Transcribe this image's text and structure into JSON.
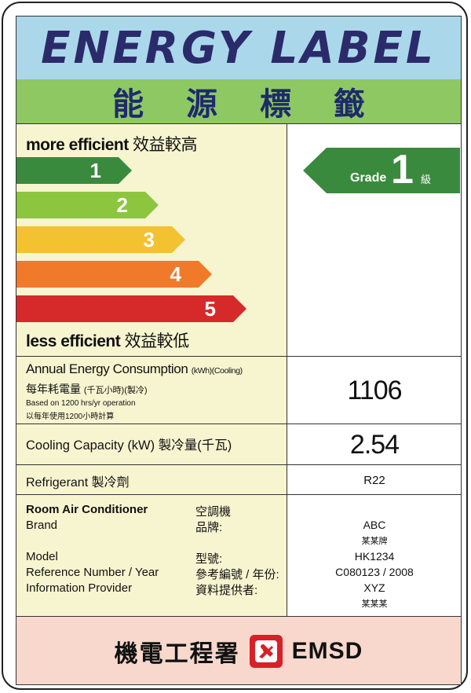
{
  "header": {
    "title_en": "ENERGY LABEL",
    "title_zh": "能 源 標 籤"
  },
  "scale": {
    "top_label_en": "more efficient",
    "top_label_zh": "效益較高",
    "bottom_label_en": "less efficient",
    "bottom_label_zh": "效益較低",
    "grades": [
      {
        "label": "1",
        "color": "#3a8a3e"
      },
      {
        "label": "2",
        "color": "#8cc63f"
      },
      {
        "label": "3",
        "color": "#f2c230"
      },
      {
        "label": "4",
        "color": "#f07a2a"
      },
      {
        "label": "5",
        "color": "#d62a2a"
      }
    ]
  },
  "rating": {
    "grade_en": "Grade",
    "grade_value": "1",
    "grade_zh": "級",
    "color": "#3a8a3e"
  },
  "consumption": {
    "label_en": "Annual Energy Consumption",
    "unit_en": "(kWh)(Cooling)",
    "label_zh": "每年耗電量",
    "unit_zh": "(千瓦小時)(製冷)",
    "note_en": "Based on 1200 hrs/yr operation",
    "note_zh": "以每年使用1200小時計算",
    "value": "1106"
  },
  "capacity": {
    "label": "Cooling Capacity (kW) 製冷量(千瓦)",
    "value": "2.54"
  },
  "refrigerant": {
    "label": "Refrigerant 製冷劑",
    "value": "R22"
  },
  "product": {
    "type_en": "Room Air Conditioner",
    "type_zh": "空調機",
    "brand_en": "Brand",
    "brand_zh": "品牌:",
    "model_en": "Model",
    "model_zh": "型號:",
    "ref_en": "Reference Number / Year",
    "ref_zh": "參考編號 / 年份:",
    "provider_en": "Information Provider",
    "provider_zh": "資料提供者:",
    "brand_value": "ABC",
    "brand_value_zh": "某某牌",
    "model_value": "HK1234",
    "ref_value": "C080123 / 2008",
    "provider_value": "XYZ",
    "provider_value_zh": "某某某"
  },
  "footer": {
    "org_zh": "機電工程署",
    "org_en": "EMSD",
    "logo_icon": "emsd-logo-icon"
  }
}
